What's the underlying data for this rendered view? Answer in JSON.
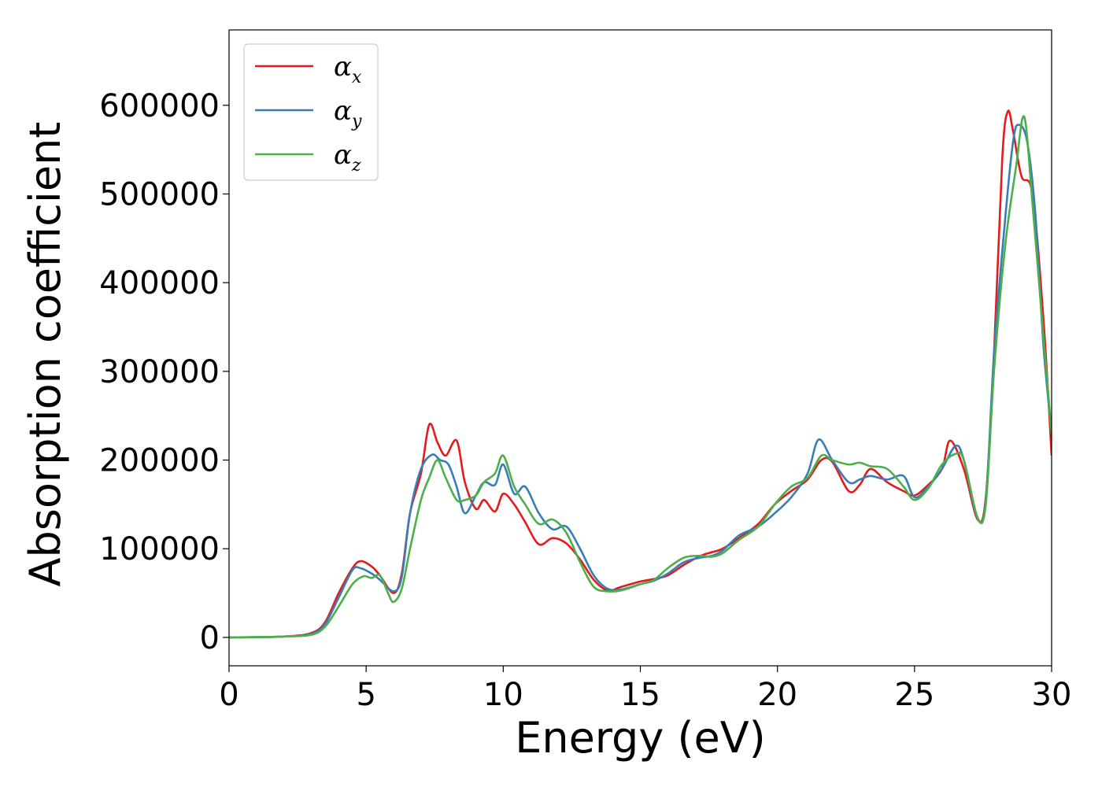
{
  "chart_data": {
    "type": "line",
    "xlabel": "Energy (eV)",
    "ylabel": "Absorption coefficient",
    "xlim": [
      0,
      30
    ],
    "ylim": [
      -32000,
      685000
    ],
    "xticks": [
      0,
      5,
      10,
      15,
      20,
      25,
      30
    ],
    "yticks": [
      0,
      100000,
      200000,
      300000,
      400000,
      500000,
      600000
    ],
    "grid": false,
    "legend_position": "top-left",
    "series": [
      {
        "name": "αx",
        "symbol": "α",
        "subscript": "x",
        "color": "#e41a1c",
        "x": [
          0,
          2,
          3,
          3.5,
          4,
          4.5,
          4.8,
          5.2,
          5.5,
          6,
          6.3,
          6.6,
          7,
          7.3,
          7.6,
          7.9,
          8.3,
          8.6,
          9,
          9.3,
          9.7,
          10,
          10.4,
          10.8,
          11.3,
          11.8,
          12.3,
          12.8,
          13.3,
          13.8,
          14.3,
          15,
          15.5,
          16,
          16.6,
          17.2,
          17.6,
          18,
          18.6,
          19.3,
          19.9,
          20.5,
          21.1,
          21.6,
          22,
          22.6,
          23,
          23.4,
          24,
          24.6,
          25,
          25.5,
          26,
          26.3,
          26.8,
          27.3,
          27.6,
          27.9,
          28.2,
          28.4,
          28.6,
          28.9,
          29.3,
          29.7,
          30
        ],
        "y": [
          0,
          1000,
          5000,
          17000,
          50000,
          78000,
          86000,
          80000,
          70000,
          50000,
          72000,
          140000,
          185000,
          240000,
          220000,
          205000,
          222000,
          175000,
          145000,
          155000,
          142000,
          162000,
          150000,
          130000,
          105000,
          112000,
          106000,
          88000,
          65000,
          53000,
          57000,
          63000,
          66000,
          70000,
          82000,
          92000,
          96000,
          100000,
          112000,
          128000,
          150000,
          165000,
          178000,
          200000,
          198000,
          165000,
          172000,
          190000,
          175000,
          165000,
          160000,
          172000,
          190000,
          222000,
          190000,
          133000,
          158000,
          320000,
          540000,
          593000,
          570000,
          520000,
          500000,
          360000,
          205000
        ]
      },
      {
        "name": "αy",
        "symbol": "α",
        "subscript": "y",
        "color": "#377eb8",
        "x": [
          0,
          2,
          3,
          3.5,
          4,
          4.5,
          4.8,
          5.2,
          5.5,
          6,
          6.3,
          6.6,
          7,
          7.4,
          7.7,
          8,
          8.3,
          8.6,
          9,
          9.3,
          9.7,
          10,
          10.4,
          10.8,
          11.3,
          11.8,
          12.3,
          12.8,
          13.3,
          13.8,
          14.3,
          15,
          15.5,
          16,
          16.6,
          17.2,
          17.6,
          18,
          18.6,
          19.3,
          19.9,
          20.5,
          21.1,
          21.5,
          22,
          22.6,
          23,
          23.4,
          24,
          24.6,
          25,
          25.5,
          26,
          26.5,
          26.8,
          27.3,
          27.6,
          27.9,
          28.3,
          28.6,
          28.8,
          29.1,
          29.4,
          29.7,
          30
        ],
        "y": [
          0,
          1000,
          4000,
          15000,
          45000,
          76000,
          78000,
          72000,
          65000,
          52000,
          68000,
          140000,
          190000,
          206000,
          200000,
          195000,
          170000,
          140000,
          160000,
          175000,
          172000,
          195000,
          162000,
          170000,
          140000,
          122000,
          125000,
          100000,
          70000,
          55000,
          54000,
          60000,
          64000,
          72000,
          85000,
          90000,
          92000,
          98000,
          115000,
          125000,
          140000,
          158000,
          185000,
          223000,
          200000,
          175000,
          178000,
          182000,
          178000,
          182000,
          158000,
          170000,
          190000,
          216000,
          200000,
          134000,
          155000,
          320000,
          470000,
          560000,
          578000,
          560000,
          480000,
          330000,
          230000
        ]
      },
      {
        "name": "αz",
        "symbol": "α",
        "subscript": "z",
        "color": "#4daf4a",
        "x": [
          0,
          2,
          3,
          3.5,
          4,
          4.5,
          4.9,
          5.2,
          5.5,
          5.8,
          6,
          6.3,
          6.6,
          7,
          7.3,
          7.6,
          7.9,
          8.3,
          8.6,
          9,
          9.3,
          9.7,
          10,
          10.4,
          10.8,
          11.3,
          11.8,
          12.3,
          12.8,
          13.3,
          13.8,
          14.3,
          15,
          15.5,
          16,
          16.6,
          17.2,
          17.6,
          18,
          18.6,
          19.3,
          19.9,
          20.5,
          21.1,
          21.6,
          22,
          22.6,
          23,
          23.4,
          24,
          24.6,
          25,
          25.5,
          26,
          26.5,
          26.8,
          27.3,
          27.6,
          27.9,
          28.3,
          28.7,
          29,
          29.3,
          29.7,
          30
        ],
        "y": [
          0,
          1000,
          3000,
          12000,
          35000,
          60000,
          69000,
          67000,
          70000,
          50000,
          40000,
          55000,
          100000,
          155000,
          180000,
          200000,
          180000,
          155000,
          155000,
          160000,
          175000,
          185000,
          205000,
          170000,
          150000,
          128000,
          133000,
          118000,
          85000,
          57000,
          52000,
          53000,
          60000,
          65000,
          78000,
          90000,
          92000,
          91000,
          95000,
          110000,
          125000,
          150000,
          170000,
          180000,
          205000,
          200000,
          195000,
          197000,
          193000,
          190000,
          170000,
          155000,
          168000,
          195000,
          207000,
          200000,
          135000,
          150000,
          300000,
          440000,
          530000,
          587000,
          490000,
          340000,
          230000
        ]
      }
    ]
  }
}
